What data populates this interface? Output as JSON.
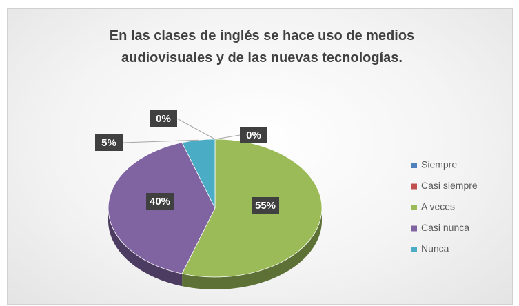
{
  "chart_data": {
    "type": "pie3d",
    "title": "En las clases de inglés se hace uso de medios audiovisuales y de las nuevas tecnologías.",
    "categories": [
      "Siempre",
      "Casi siempre",
      "A veces",
      "Casi nunca",
      "Nunca"
    ],
    "values": [
      0,
      0,
      55,
      40,
      5
    ],
    "value_labels": [
      "0%",
      "0%",
      "55%",
      "40%",
      "5%"
    ],
    "colors": [
      "#4f81bd",
      "#c0504d",
      "#9bbb59",
      "#8064a2",
      "#4bacc6"
    ],
    "legend": "right"
  }
}
